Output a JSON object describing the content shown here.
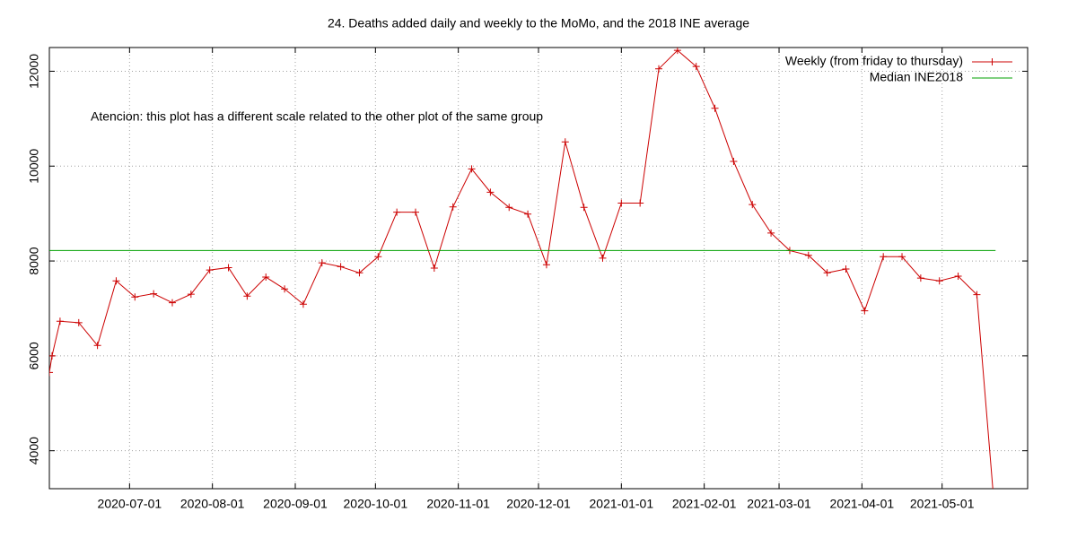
{
  "chart_data": {
    "type": "line",
    "title": "24. Deaths added daily and weekly to the MoMo, and the 2018 INE average",
    "annotation": "Atencion: this plot has a different scale related to the other plot of the same group",
    "annotation_color": "#ff0000",
    "xlim": [
      "2020-06-01",
      "2021-06-02"
    ],
    "xticks": [
      "2020-07-01",
      "2020-08-01",
      "2020-09-01",
      "2020-10-01",
      "2020-11-01",
      "2020-12-01",
      "2021-01-01",
      "2021-02-01",
      "2021-03-01",
      "2021-04-01",
      "2021-05-01"
    ],
    "ylim": [
      3200,
      12500
    ],
    "yticks": [
      4000,
      6000,
      8000,
      10000,
      12000
    ],
    "grid": true,
    "legend": "top-right",
    "series": [
      {
        "name": "Weekly (from friday to thursday)",
        "color": "#cc0000",
        "marker": "plus",
        "x": [
          "2020-06-01",
          "2020-06-02",
          "2020-06-05",
          "2020-06-12",
          "2020-06-19",
          "2020-06-26",
          "2020-07-03",
          "2020-07-10",
          "2020-07-17",
          "2020-07-24",
          "2020-07-31",
          "2020-08-07",
          "2020-08-14",
          "2020-08-21",
          "2020-08-28",
          "2020-09-04",
          "2020-09-11",
          "2020-09-18",
          "2020-09-25",
          "2020-10-02",
          "2020-10-09",
          "2020-10-16",
          "2020-10-23",
          "2020-10-30",
          "2020-11-06",
          "2020-11-13",
          "2020-11-20",
          "2020-11-27",
          "2020-12-04",
          "2020-12-11",
          "2020-12-18",
          "2020-12-25",
          "2021-01-01",
          "2021-01-08",
          "2021-01-15",
          "2021-01-22",
          "2021-01-29",
          "2021-02-05",
          "2021-02-12",
          "2021-02-19",
          "2021-02-26",
          "2021-03-05",
          "2021-03-12",
          "2021-03-19",
          "2021-03-26",
          "2021-04-02",
          "2021-04-09",
          "2021-04-16",
          "2021-04-23",
          "2021-04-30",
          "2021-05-07",
          "2021-05-14",
          "2021-05-21"
        ],
        "values": [
          5650,
          6000,
          6730,
          6700,
          6220,
          7580,
          7240,
          7310,
          7120,
          7300,
          7810,
          7860,
          7260,
          7660,
          7410,
          7090,
          7960,
          7880,
          7750,
          8090,
          9030,
          9030,
          7850,
          9140,
          9940,
          9450,
          9130,
          8990,
          7920,
          10510,
          9130,
          8060,
          9220,
          9220,
          12050,
          12440,
          12100,
          11220,
          10100,
          9190,
          8590,
          8220,
          8120,
          7750,
          7830,
          6950,
          8090,
          8090,
          7640,
          7580,
          7680,
          7290,
          2500
        ]
      },
      {
        "name": "Median INE2018",
        "color": "#00a000",
        "marker": "none",
        "x": [
          "2020-06-01",
          "2021-05-21"
        ],
        "values": [
          8220,
          8220
        ]
      }
    ]
  }
}
